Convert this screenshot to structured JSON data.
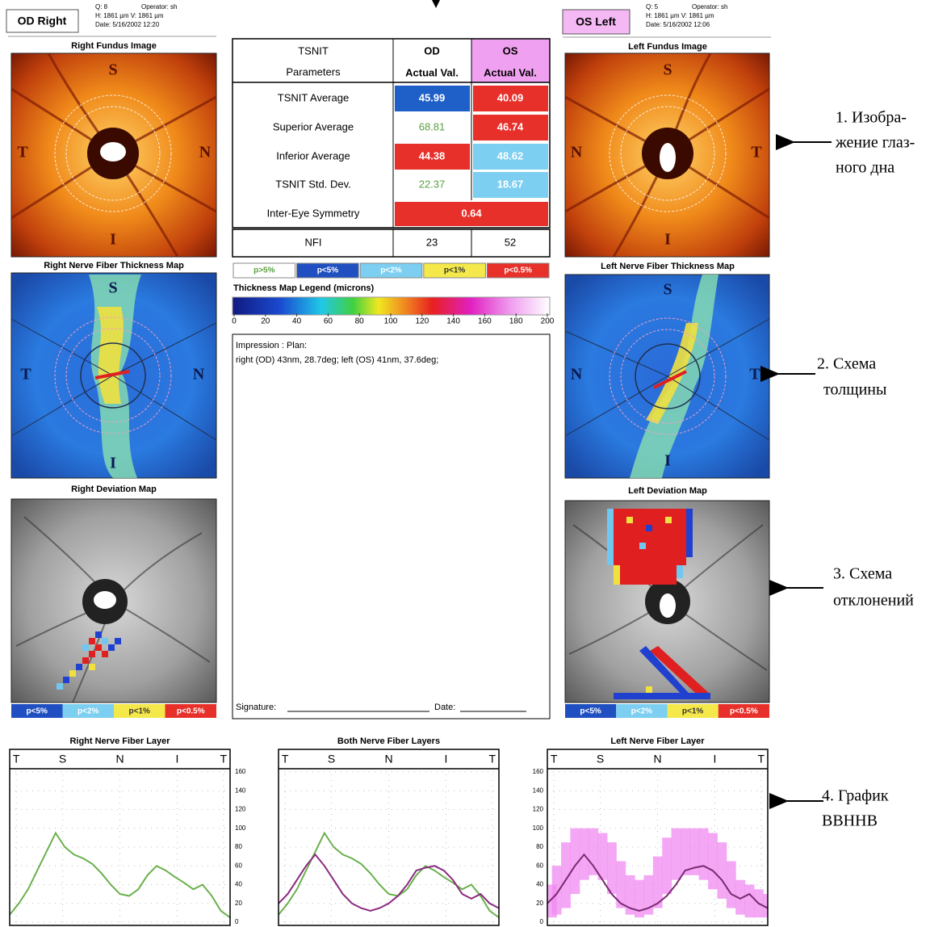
{
  "header_right": {
    "eye": "OD Right",
    "q": "Q: 8",
    "operator": "Operator: sh",
    "size": "H: 1861 µm  V: 1861 µm",
    "date": "Date: 5/16/2002 12:20"
  },
  "header_left": {
    "eye": "OS Left",
    "q": "Q: 5",
    "operator": "Operator: sh",
    "size": "H: 1861 µm  V: 1861 µm",
    "date": "Date: 5/16/2002 12:06"
  },
  "right_panels": {
    "fundus_title": "Right Fundus Image",
    "thickness_title": "Right Nerve Fiber Thickness Map",
    "deviation_title": "Right Deviation Map",
    "orientation": [
      "S",
      "T",
      "N",
      "I"
    ]
  },
  "left_panels": {
    "fundus_title": "Left Fundus Image",
    "thickness_title": "Left Nerve Fiber Thickness Map",
    "deviation_title": "Left Deviation Map",
    "orientation": [
      "S",
      "N",
      "T",
      "I"
    ]
  },
  "table": {
    "header": [
      [
        "TSNIT",
        "Parameters"
      ],
      [
        "OD",
        "Actual Val."
      ],
      [
        "OS",
        "Actual Val."
      ]
    ],
    "rows": [
      {
        "label": "TSNIT Average",
        "od": 45.99,
        "os": 40.09
      },
      {
        "label": "Superior Average",
        "od": 68.81,
        "os": 46.74
      },
      {
        "label": "Inferior Average",
        "od": 44.38,
        "os": 48.62
      },
      {
        "label": "TSNIT Std. Dev.",
        "od": 22.37,
        "os": 18.67
      }
    ],
    "symmetry": {
      "label": "Inter-Eye Symmetry",
      "value": 0.64
    },
    "nfi": {
      "label": "NFI",
      "od": 23,
      "os": 52
    }
  },
  "significance": [
    "p>5%",
    "p<5%",
    "p<2%",
    "p<1%",
    "p<0.5%"
  ],
  "thickness_legend": {
    "title": "Thickness Map Legend (microns)",
    "lim": [
      0,
      200
    ],
    "ticks": [
      0,
      20,
      40,
      60,
      80,
      100,
      120,
      140,
      160,
      180,
      200
    ]
  },
  "impression": {
    "title": "Impression : Plan:",
    "text": "right (OD) 43nm, 28.7deg; left (OS) 41nm, 37.6deg;",
    "signature": "Signature:",
    "date": "Date:"
  },
  "graphs": {
    "type": "line",
    "ylim": [
      0,
      160
    ],
    "yticks": [
      0,
      20,
      40,
      60,
      80,
      100,
      120,
      140,
      160
    ],
    "xlabels": [
      "T",
      "S",
      "N",
      "I",
      "T"
    ],
    "charts": [
      {
        "title": "Right Nerve Fiber Layer",
        "series": [
          {
            "color": "#6ab04c",
            "values": [
              8,
              20,
              35,
              55,
              75,
              95,
              80,
              72,
              68,
              62,
              52,
              40,
              30,
              28,
              35,
              50,
              60,
              55,
              48,
              42,
              35,
              40,
              28,
              12,
              5
            ]
          }
        ]
      },
      {
        "title": "Both Nerve Fiber Layers",
        "series": [
          {
            "color": "#6ab04c",
            "values": [
              8,
              20,
              35,
              55,
              75,
              95,
              80,
              72,
              68,
              62,
              52,
              40,
              30,
              28,
              35,
              50,
              60,
              55,
              48,
              42,
              35,
              40,
              28,
              12,
              5
            ]
          },
          {
            "color": "#8a2a80",
            "values": [
              20,
              30,
              45,
              60,
              72,
              60,
              45,
              30,
              20,
              15,
              12,
              15,
              20,
              28,
              40,
              55,
              58,
              60,
              55,
              45,
              30,
              25,
              30,
              20,
              15
            ]
          }
        ]
      },
      {
        "title": "Left Nerve Fiber Layer",
        "band": {
          "color": "#f08af0",
          "upper": [
            40,
            60,
            85,
            100,
            100,
            100,
            95,
            85,
            65,
            50,
            45,
            50,
            70,
            90,
            100,
            100,
            100,
            100,
            95,
            85,
            65,
            45,
            40,
            35,
            30
          ],
          "lower": [
            5,
            8,
            15,
            30,
            45,
            50,
            45,
            30,
            15,
            8,
            5,
            8,
            15,
            30,
            45,
            50,
            50,
            45,
            35,
            25,
            15,
            8,
            5,
            5,
            5
          ]
        },
        "series": [
          {
            "color": "#7a2a70",
            "values": [
              20,
              30,
              45,
              60,
              72,
              60,
              45,
              30,
              20,
              15,
              12,
              15,
              20,
              28,
              40,
              55,
              58,
              60,
              55,
              45,
              30,
              25,
              30,
              20,
              15
            ]
          }
        ]
      }
    ]
  },
  "annotations": [
    [
      "1. Изобра-",
      "жение глаз-",
      "ного дна"
    ],
    [
      "2. Схема",
      "толщины"
    ],
    [
      "3. Схема",
      "отклонений"
    ],
    [
      "4. График",
      "ВВННВ"
    ]
  ]
}
